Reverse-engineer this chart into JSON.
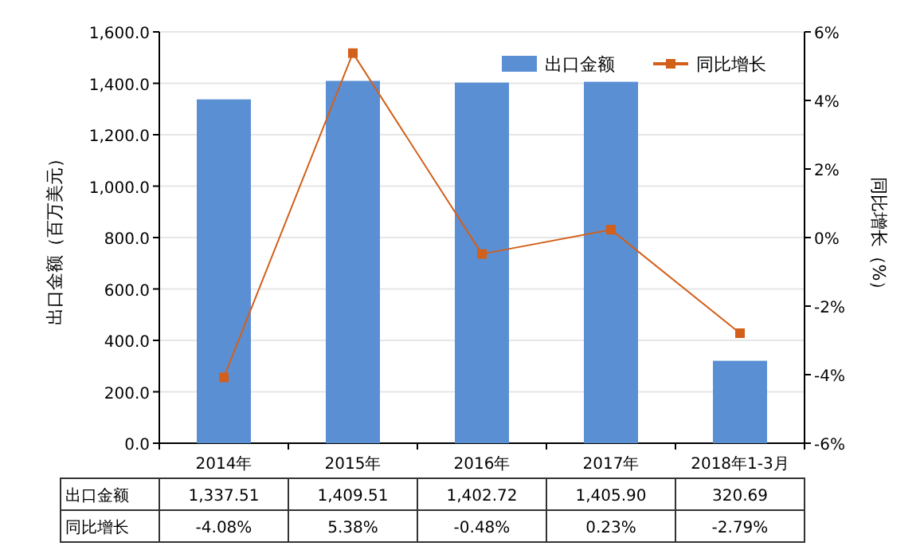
{
  "chart_data": {
    "type": "bar",
    "ylabel": "出口金额（百万美元）",
    "y2label": "同比增长（%）",
    "categories": [
      "2014年",
      "2015年",
      "2016年",
      "2017年",
      "2018年1-3月"
    ],
    "series": [
      {
        "name": "出口金额",
        "color": "#5b8fd4",
        "values": [
          1337.51,
          1409.51,
          1402.72,
          1405.9,
          320.69
        ],
        "value_labels": [
          "1,337.51",
          "1,409.51",
          "1,402.72",
          "1,405.90",
          "320.69"
        ]
      },
      {
        "name": "同比增长",
        "type": "line",
        "axis": "y2",
        "color": "#d2601a",
        "marker": "square",
        "values": [
          -4.08,
          5.38,
          -0.48,
          0.23,
          -2.79
        ],
        "value_labels": [
          "-4.08%",
          "5.38%",
          "-0.48%",
          "0.23%",
          "-2.79%"
        ]
      }
    ],
    "ylim": [
      0,
      1600
    ],
    "yticks": [
      {
        "value": 0,
        "label": "0.0"
      },
      {
        "value": 200,
        "label": "200.0"
      },
      {
        "value": 400,
        "label": "400.0"
      },
      {
        "value": 600,
        "label": "600.0"
      },
      {
        "value": 800,
        "label": "800.0"
      },
      {
        "value": 1000,
        "label": "1,000.0"
      },
      {
        "value": 1200,
        "label": "1,200.0"
      },
      {
        "value": 1400,
        "label": "1,400.0"
      },
      {
        "value": 1600,
        "label": "1,600.0"
      }
    ],
    "y2lim": [
      -6,
      6
    ],
    "y2ticks": [
      {
        "value": -6,
        "label": "-6%"
      },
      {
        "value": -4,
        "label": "-4%"
      },
      {
        "value": -2,
        "label": "-2%"
      },
      {
        "value": 0,
        "label": "0%"
      },
      {
        "value": 2,
        "label": "2%"
      },
      {
        "value": 4,
        "label": "4%"
      },
      {
        "value": 6,
        "label": "6%"
      }
    ],
    "grid": "y",
    "legend": "top right"
  }
}
